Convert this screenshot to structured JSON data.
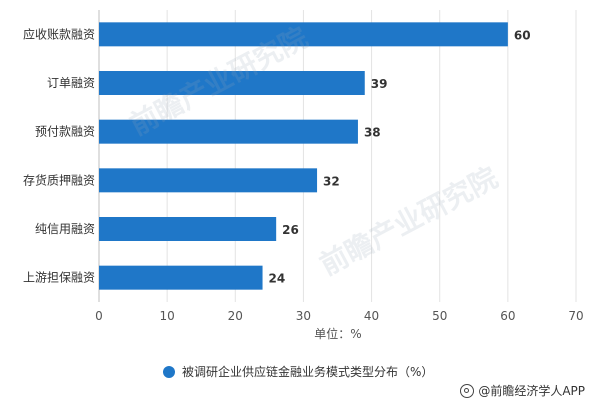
{
  "chart_data": {
    "type": "bar",
    "orientation": "horizontal",
    "categories": [
      "应收账款融资",
      "订单融资",
      "预付款融资",
      "存货质押融资",
      "纯信用融资",
      "上游担保融资"
    ],
    "series": [
      {
        "name": "被调研企业供应链金融业务模式类型分布（%）",
        "values": [
          60,
          39,
          38,
          32,
          26,
          24
        ],
        "color": "#1f77c8"
      }
    ],
    "xlabel": "单位：%",
    "xlim": [
      0,
      70
    ],
    "xticks": [
      0,
      10,
      20,
      30,
      40,
      50,
      60,
      70
    ],
    "grid": "vertical",
    "legend_position": "bottom"
  },
  "credit": "@前瞻经济学人APP",
  "watermark_text": "前瞻产业研究院"
}
